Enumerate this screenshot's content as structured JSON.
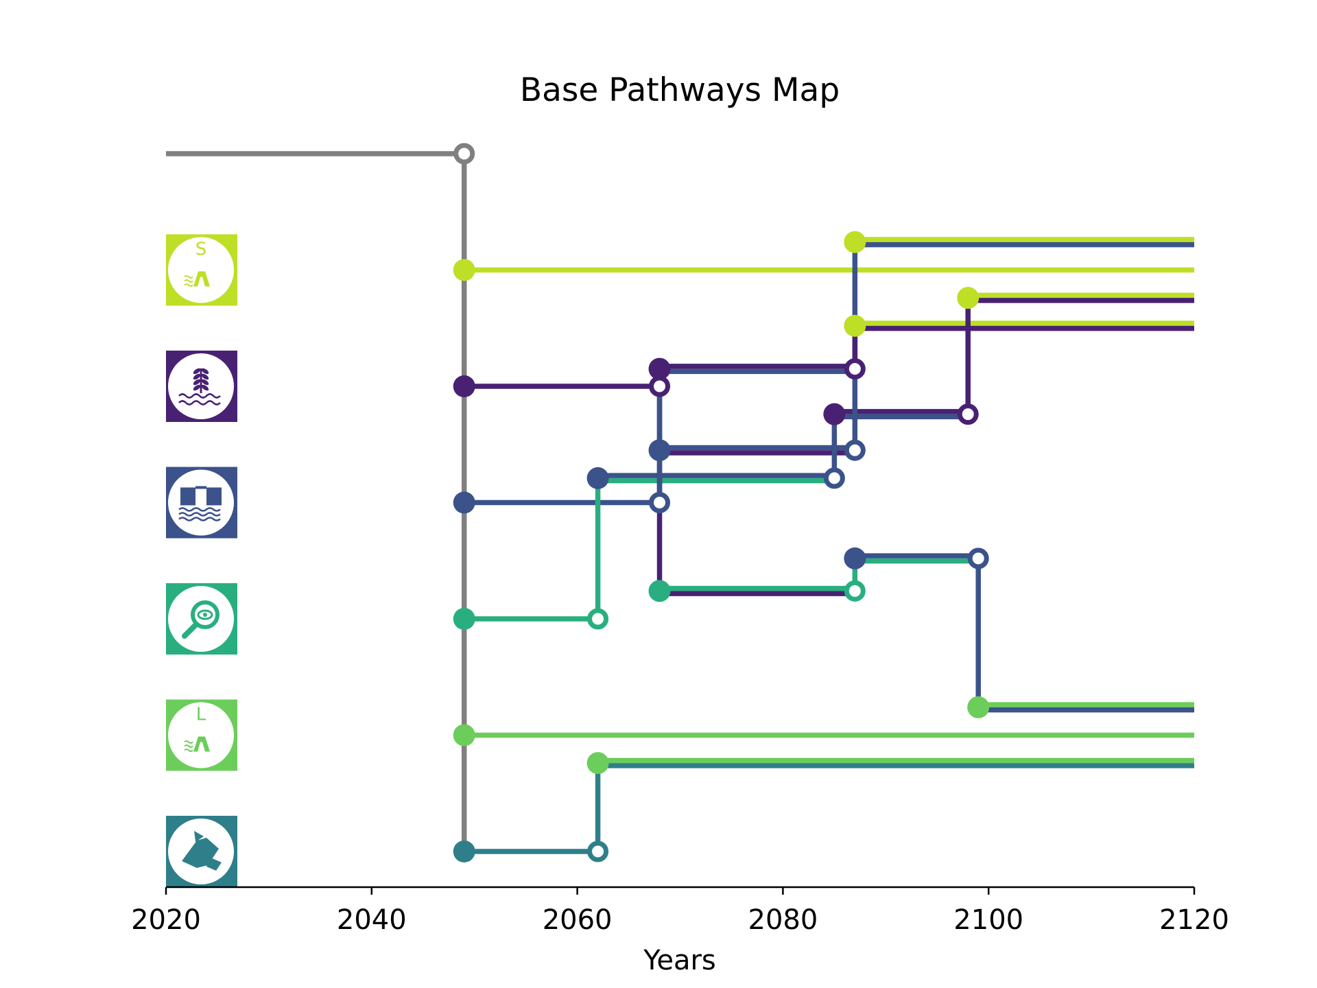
{
  "chart_data": {
    "type": "line",
    "title": "Base Pathways Map",
    "xlabel": "Years",
    "xlim": [
      2020,
      2120
    ],
    "xticks": [
      "2020",
      "2040",
      "2060",
      "2080",
      "2100",
      "2120"
    ],
    "axis_color": "#000000",
    "current_situation": {
      "color": "#808080",
      "start": 2020,
      "end": 2049
    },
    "measures": [
      {
        "id": "small-dike",
        "icon": "dike-icon",
        "letter": "S",
        "color": "#bddf26",
        "row": 1
      },
      {
        "id": "nature-based",
        "icon": "plant-icon",
        "letter": "",
        "color": "#482173",
        "row": 2
      },
      {
        "id": "flood-barrier",
        "icon": "barrier-icon",
        "letter": "",
        "color": "#3b528b",
        "row": 3
      },
      {
        "id": "monitoring",
        "icon": "magnifier-icon",
        "letter": "",
        "color": "#29af7f",
        "row": 4
      },
      {
        "id": "large-dike",
        "icon": "dike-icon",
        "letter": "L",
        "color": "#6ccd5a",
        "row": 5
      },
      {
        "id": "cooperation",
        "icon": "handshake-icon",
        "letter": "",
        "color": "#2e7f8a",
        "row": 6
      }
    ],
    "segments": [
      {
        "color": "#bddf26",
        "x": [
          2049,
          2120
        ],
        "y": 1
      },
      {
        "color": "#482173",
        "x": [
          2049,
          2068
        ],
        "y": 2
      },
      {
        "color": "#3b528b",
        "x": [
          2049,
          2068
        ],
        "y": 3
      },
      {
        "color": "#29af7f",
        "x": [
          2049,
          2062
        ],
        "y": 4
      },
      {
        "color": "#6ccd5a",
        "x": [
          2049,
          2120
        ],
        "y": 5
      },
      {
        "color": "#2e7f8a",
        "x": [
          2049,
          2062
        ],
        "y": 6
      },
      {
        "color": "#482173",
        "x": [
          2068,
          2087
        ],
        "y": 1.85
      },
      {
        "color": "#3b528b",
        "x": [
          2068,
          2087
        ],
        "y": 1.85
      },
      {
        "color": "#3b528b",
        "x": [
          2068,
          2087
        ],
        "y": 2.55
      },
      {
        "color": "#482173",
        "x": [
          2068,
          2087
        ],
        "y": 2.55
      },
      {
        "color": "#3b528b",
        "x": [
          2062,
          2085
        ],
        "y": 2.79
      },
      {
        "color": "#29af7f",
        "x": [
          2062,
          2085
        ],
        "y": 2.79
      },
      {
        "color": "#29af7f",
        "x": [
          2068,
          2087
        ],
        "y": 3.76
      },
      {
        "color": "#482173",
        "x": [
          2068,
          2087
        ],
        "y": 3.76
      },
      {
        "color": "#3b528b",
        "x": [
          2087,
          2099
        ],
        "y": 3.48
      },
      {
        "color": "#29af7f",
        "x": [
          2087,
          2099
        ],
        "y": 3.48
      },
      {
        "color": "#482173",
        "x": [
          2085,
          2098
        ],
        "y": 2.24
      },
      {
        "color": "#3b528b",
        "x": [
          2085,
          2098
        ],
        "y": 2.24
      },
      {
        "color": "#bddf26",
        "x": [
          2087,
          2120
        ],
        "y": 0.76
      },
      {
        "color": "#3b528b",
        "x": [
          2087,
          2120
        ],
        "y": 0.76
      },
      {
        "color": "#bddf26",
        "x": [
          2087,
          2120
        ],
        "y": 1.48
      },
      {
        "color": "#482173",
        "x": [
          2087,
          2120
        ],
        "y": 1.48
      },
      {
        "color": "#bddf26",
        "x": [
          2098,
          2120
        ],
        "y": 1.24
      },
      {
        "color": "#482173",
        "x": [
          2098,
          2120
        ],
        "y": 1.24
      },
      {
        "color": "#6ccd5a",
        "x": [
          2099,
          2120
        ],
        "y": 4.76
      },
      {
        "color": "#3b528b",
        "x": [
          2099,
          2120
        ],
        "y": 4.76
      },
      {
        "color": "#6ccd5a",
        "x": [
          2062,
          2120
        ],
        "y": 5.24
      },
      {
        "color": "#2e7f8a",
        "x": [
          2062,
          2120
        ],
        "y": 5.24
      }
    ],
    "connectors": [
      {
        "color": "#482173",
        "x": 2068,
        "y": [
          2,
          3.76
        ]
      },
      {
        "color": "#3b528b",
        "x": 2068,
        "y": [
          1.85,
          3
        ]
      },
      {
        "color": "#29af7f",
        "x": 2062,
        "y": [
          2.79,
          4
        ]
      },
      {
        "color": "#3b528b",
        "x": 2087,
        "y": [
          0.76,
          2.55
        ]
      },
      {
        "color": "#482173",
        "x": 2087,
        "y": [
          1.48,
          1.85
        ]
      },
      {
        "color": "#3b528b",
        "x": 2085,
        "y": [
          2.24,
          2.79
        ]
      },
      {
        "color": "#482173",
        "x": 2098,
        "y": [
          1.24,
          2.24
        ]
      },
      {
        "color": "#29af7f",
        "x": 2087,
        "y": [
          3.48,
          3.76
        ]
      },
      {
        "color": "#3b528b",
        "x": 2099,
        "y": [
          3.48,
          4.76
        ]
      },
      {
        "color": "#2e7f8a",
        "x": 2062,
        "y": [
          5.24,
          6
        ]
      }
    ],
    "transfer_points": [
      {
        "color": "#808080",
        "x": 2049,
        "y": 0
      },
      {
        "color": "#482173",
        "x": 2068,
        "y": 2
      },
      {
        "color": "#3b528b",
        "x": 2068,
        "y": 3
      },
      {
        "color": "#29af7f",
        "x": 2062,
        "y": 4
      },
      {
        "color": "#2e7f8a",
        "x": 2062,
        "y": 6
      },
      {
        "color": "#482173",
        "x": 2087,
        "y": 1.85
      },
      {
        "color": "#3b528b",
        "x": 2087,
        "y": 2.55
      },
      {
        "color": "#3b528b",
        "x": 2085,
        "y": 2.79
      },
      {
        "color": "#29af7f",
        "x": 2087,
        "y": 3.76
      },
      {
        "color": "#3b528b",
        "x": 2099,
        "y": 3.48
      },
      {
        "color": "#482173",
        "x": 2098,
        "y": 2.24
      }
    ],
    "start_points": [
      {
        "color": "#bddf26",
        "x": 2049,
        "y": 1
      },
      {
        "color": "#482173",
        "x": 2049,
        "y": 2
      },
      {
        "color": "#3b528b",
        "x": 2049,
        "y": 3
      },
      {
        "color": "#29af7f",
        "x": 2049,
        "y": 4
      },
      {
        "color": "#6ccd5a",
        "x": 2049,
        "y": 5
      },
      {
        "color": "#2e7f8a",
        "x": 2049,
        "y": 6
      },
      {
        "color": "#482173",
        "x": 2068,
        "y": 1.85
      },
      {
        "color": "#3b528b",
        "x": 2068,
        "y": 2.55
      },
      {
        "color": "#3b528b",
        "x": 2062,
        "y": 2.79
      },
      {
        "color": "#29af7f",
        "x": 2068,
        "y": 3.76
      },
      {
        "color": "#3b528b",
        "x": 2087,
        "y": 3.48
      },
      {
        "color": "#482173",
        "x": 2085,
        "y": 2.24
      },
      {
        "color": "#bddf26",
        "x": 2087,
        "y": 0.76
      },
      {
        "color": "#bddf26",
        "x": 2087,
        "y": 1.48
      },
      {
        "color": "#bddf26",
        "x": 2098,
        "y": 1.24
      },
      {
        "color": "#6ccd5a",
        "x": 2099,
        "y": 4.76
      },
      {
        "color": "#6ccd5a",
        "x": 2062,
        "y": 5.24
      }
    ]
  }
}
